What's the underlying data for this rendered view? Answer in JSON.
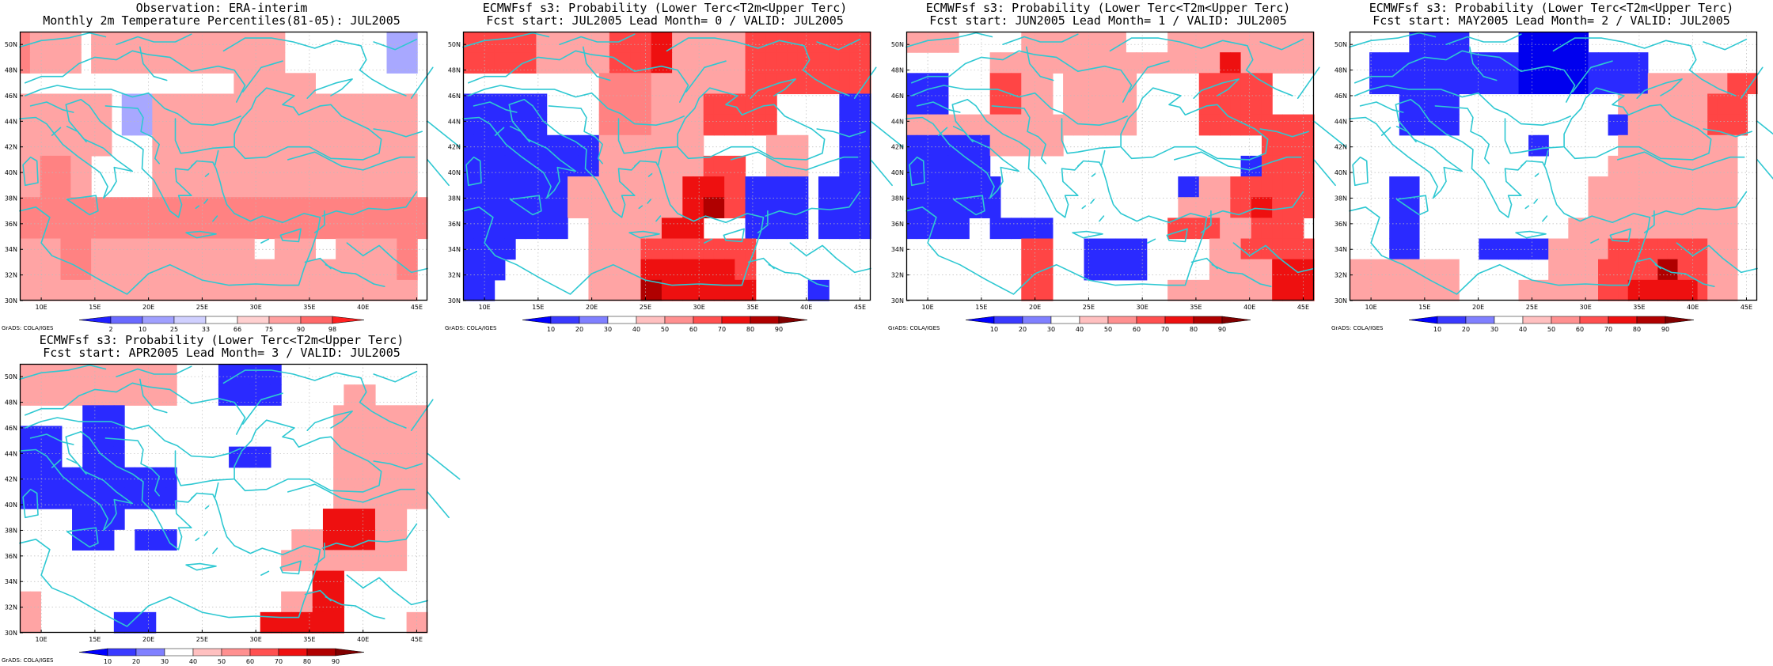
{
  "xticks": [
    "10E",
    "15E",
    "20E",
    "25E",
    "30E",
    "35E",
    "40E",
    "45E"
  ],
  "yticks": [
    "30N",
    "32N",
    "34N",
    "36N",
    "38N",
    "40N",
    "42N",
    "44N",
    "46N",
    "48N",
    "50N"
  ],
  "credit": "GrADS: COLA/IGES",
  "obs_legend": {
    "labels": [
      "2",
      "10",
      "25",
      "33",
      "66",
      "75",
      "90",
      "98"
    ],
    "colors": [
      "#2020ff",
      "#6a6aff",
      "#a0a0ff",
      "#d0d0ff",
      "#ffffff",
      "#ffd0d0",
      "#ffa0a0",
      "#ff6a6a",
      "#ff2020"
    ]
  },
  "prob_legend": {
    "labels": [
      "10",
      "20",
      "30",
      "40",
      "50",
      "60",
      "70",
      "80",
      "90"
    ],
    "colors": [
      "#0000ff",
      "#3a3aff",
      "#8080ff",
      "#ffffff",
      "#ffc0c0",
      "#ff9090",
      "#ff5050",
      "#ee1010",
      "#b00000",
      "#800000"
    ]
  },
  "palette": {
    "W": "#ffffff",
    "p": "#ffc4c4",
    "m": "#ffa4a4",
    "s": "#ff8282",
    "r": "#ff4545",
    "R": "#ee1010",
    "D": "#b00000",
    "K": "#7a0000",
    "l": "#a8a8ff",
    "b": "#6a6aff",
    "B": "#2a2aff",
    "N": "#0000ee"
  },
  "panels": [
    {
      "title_line1": "Observation: ERA-interim",
      "title_line2": "Monthly 2m Temperature Percentiles(81-05): JUL2005",
      "legend": "obs",
      "grid": [
        "smmmmmWmmmmmmmmmmmmmmmmmmmWWWWWWWWWWlll",
        "smmmmmWmmmmmmmmmmmmmmmmmmmWWWWWWWWWWlll",
        "WWWWWWWWWWWWWWWWWWWWWmmmmmmmmWWWWWWWWWW",
        "mmmmmmmmmWlllmmmmmmmmmmmmmmmmmmmmmmmmmm",
        "mmmmmmmmmWlllmmmmmmmmmmmmmmmmmmmmmmmmmm",
        "mmmmmmmmmWWWWmmmmmmmmmmmmmmmmmmmmmmmmmm",
        "mmsssmmWWWWWWmmmmmmmmmmmmmmmmmmmmmmmmmm",
        "mmsssmmWWWWWWmmmmmmmmmmmmmmmmmmmmmmmmmm",
        "ssssssssssssssssssssssssssssssssssssssss",
        "ssssssssssssssssssssssssssssssssssssssss",
        "mmmmsssmmmmmmmmmmmmmmmmWWmmmmWWmmmmmmss",
        "mmmmsssmmmmmmmmmmmmmmmmmmmmmmmmmmmmmmss",
        "mmmmmmmmmmmmmmmmmmmmmmmmmmmmmmmmmmmmmmm"
      ]
    },
    {
      "title_line1": "ECMWFsf s3: Probability (Lower Terc<T2m<Upper Terc)",
      "title_line2": "Fcst start: JUL2005  Lead Month= 0 / VALID: JUL2005",
      "legend": "prob",
      "grid": [
        "rrrrrrrmmmmmmmrrrrRRmmmmmmmrrrrrrrrrrrr",
        "rrrrrrrmmmmmmmrrrrRRmmmmmmmrrrrrrrrrrrr",
        "WWWWWWWWWWWWWsssssmmmmmmmmmrrrrrrrrrrrr",
        "BBBBBBBBWWWWWsssssmmmmmrrrrrrrWWWWWWBBB",
        "BBBBBBBBWWWWWsssssmmmmmrrrrrrrWWWWWWBBB",
        "BBBBBBBBBBBBBmmmmmmmmmmWWWWWWmmmmWWWBBB",
        "BBBBBBBBBBBBBmmmmmmmmmmrrrrWWmmmmWWWBBB",
        "BBBBBBBBBBmmmmmmmmmmmRRRRrrBBBBBBWBBBBB",
        "BBBBBBBBBBmmmmmmmmmmmRRDDrrBBBBBBWBBBBB",
        "BBBBBBBBBBWWmmmmmmmRRRRWWWWBBBBBBWBBBBB",
        "BBBBBWWWWWWWmmmmmrrrrrrrrrrrWWWWWWWWWWW",
        "BBBBWWWWWWWWmmmmmRRRRRRRRRrrWWWWWWWWWWW",
        "BBBWWWWWWWWWmmmmmDDRRRRRRRRRWWWWWBBWWWW"
      ]
    },
    {
      "title_line1": "ECMWFsf s3: Probability (Lower Terc<T2m<Upper Terc)",
      "title_line2": "Fcst start: JUN2005  Lead Month= 1 / VALID: JUL2005",
      "legend": "prob",
      "grid": [
        "mmmmmWWWWWWmmmmmmmmmmWWWWmmmmmmmmmmmmmm",
        "WWWWWWWWmmmmmmmmmmmmmmmmmmmmmmRRmmmmmmm",
        "BBBBWWWWrrrmmmWmmmmmmmWWWWWWrrrrrrrWWWW",
        "BBBBWWWWrrrmmmWmmmmmmmWWWWWWrrrrrrrWWWW",
        "mmmmmmmmmmmmmmmmmmmmmmWWWWWWrrrrrrrrrrr",
        "BBBBBBBBmmmmmmmWWWWWWWWWWWWWWWWWWWrrrrr",
        "BBBBBBBBWWWWWWWWWWWWWWWWWWWWWWWWBBrrrrr",
        "BBBBBBBBBWWWWWWWWWWWWWWWWWBBmmmrrrrrrrr",
        "BBBBBBBBBWWWWWWWWWWWWWWWWWmmmmmrrRRrrrr",
        "BBBBBBWWBBBBBBWWWWWWWWWWWrrrrrmmmrrrrrW",
        "WWWWWWWWWWWrrrWWWBBBBBBWWWWWWmmmrrrrrrr",
        "WWWWWWWWWWWrrrWWWBBBBBBWWWWWWmmmmmmRRRR",
        "WWWWWWWWWWWrrrWWWWWWWWWWWmmmmmmmmmmRRRR"
      ]
    },
    {
      "title_line1": "ECMWFsf s3: Probability (Lower Terc<T2m<Upper Terc)",
      "title_line2": "Fcst start: MAY2005  Lead Month= 2 / VALID: JUL2005",
      "legend": "prob",
      "grid": [
        "WWWWWWBBBBBBWWWWWNNNNNNNWWWWWWWWWWWWWWW",
        "WWBBBBBBBBBBBBBBBNNNNNNNBBBBBBWWWWWWWWWW",
        "WWBBBBBBBBBBBBBBBNNNNNNNBBBBBBmmmmmmmmrrr",
        "WWWWWBBBBBBWWWWWWWWWWWWWWWWmmmmmmmmmrrrr",
        "WWWWWBBBBBBWWWWWWWWWWWWWWWBBmmmmmmmmrrrr",
        "WWWWWWWWWWWWWWWWWWBBWWWWWWWmmmmmmmmmmmm",
        "WWWWWWWWWWWWWWWWWWWWWWWWWWmmmmmmmmmmmmm",
        "WWWWBBBWWWWWWWWWWWWWWWWWmmmmmmmmmmmmmmm",
        "WWWWBBBWWWWWWWWWWWWWWWWWmmmmmmmmmmmmmmm",
        "WWWWBBBWWWWWWWWWWWWWWWmmmmmmmmmmmmmmmmm",
        "WWWWBBBWWWWWWBBBBBBBmmmmmmrrrrrrrrrrmmm",
        "mmmmmmmmmmmWWWWWWWWWmmmmmrrrrrrDDrrrmmm",
        "mmmmmmmmmmmWWWWWWmmmmmmmmrrrRRRRRRRrmmm"
      ]
    },
    {
      "title_line1": "ECMWFsf s3: Probability (Lower Terc<T2m<Upper Terc)",
      "title_line2": "Fcst start: APR2005  Lead Month= 3 / VALID: JUL2005",
      "legend": "prob",
      "grid": [
        "mmmmmmmmmmmmmmmWWWWBBBBBBWWWWWWWWWWWWWW",
        "mmmmmmmmmmmmmmmWWWWBBBBBBWWWWWWmmmWWWWW",
        "WWWWWWBBBBWWWWWWWWWWWWWWWWWWWWmmmmmmmmm",
        "BBBBWWBBBBWWWWWWWWWWWWWWWWWWWWmmmmmmmmm",
        "BBBBWWBBBBWWWWWWWWWWBBBBWWWWWWmmmmmmmmm",
        "BBBBBBBBBBBBBBBWWWWWWWWWWWWWWWmmmmmmmmm",
        "BBBBBBBBBBBBBBBWWWWWWWWWWWWWWWmmmmmmmmm",
        "WWWWWBBBBBWWWWWWWWWWWWWWWWWWWRRRRRmmmWW",
        "WWWWWBBBBWWBBBBWWWWWWWWWWWmmmRRRRRmmmWW",
        "WWWWWWWWWWWWWWWWWWWWWWWWWmmmmmmmmmmmmWW",
        "WWWWWWWWWWWWWWWWWWWWWWWWWWWWRRRWWWWWWWW",
        "mmWWWWWWWWWWWWWWWWWWWWWWWmmmRRRWWWWWWWW",
        "mmWWWWWWWBBBBWWWWWWWWWWRRRRRRRRWWWWWWmm"
      ]
    }
  ]
}
